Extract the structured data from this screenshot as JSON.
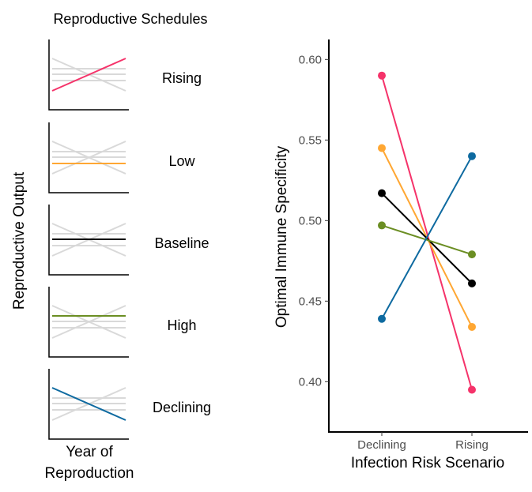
{
  "chart_data": [
    {
      "type": "line",
      "title": "Reproductive Schedules",
      "ylabel": "Reproductive Output",
      "xlabel": "Year of Reproduction",
      "panels": [
        {
          "name": "Rising",
          "color": "#f5336a",
          "shape": "rising"
        },
        {
          "name": "Low",
          "color": "#ffa733",
          "shape": "low"
        },
        {
          "name": "Baseline",
          "color": "#000000",
          "shape": "baseline"
        },
        {
          "name": "High",
          "color": "#6b8e23",
          "shape": "high"
        },
        {
          "name": "Declining",
          "color": "#0e6aa0",
          "shape": "declining"
        }
      ],
      "background_line_color": "#d9d9d9"
    },
    {
      "type": "line",
      "xlabel": "Infection Risk Scenario",
      "ylabel": "Optimal Immune Specificity",
      "categories": [
        "Declining",
        "Rising"
      ],
      "ylim": [
        0.38,
        0.61
      ],
      "yticks": [
        "0.40",
        "0.45",
        "0.50",
        "0.55",
        "0.60"
      ],
      "grid": false,
      "series": [
        {
          "name": "Rising",
          "color": "#f5336a",
          "values": [
            0.59,
            0.395
          ]
        },
        {
          "name": "Low",
          "color": "#ffa733",
          "values": [
            0.545,
            0.434
          ]
        },
        {
          "name": "Baseline",
          "color": "#000000",
          "values": [
            0.517,
            0.461
          ]
        },
        {
          "name": "High",
          "color": "#6b8e23",
          "values": [
            0.497,
            0.479
          ]
        },
        {
          "name": "Declining",
          "color": "#0e6aa0",
          "values": [
            0.439,
            0.54
          ]
        }
      ]
    }
  ]
}
